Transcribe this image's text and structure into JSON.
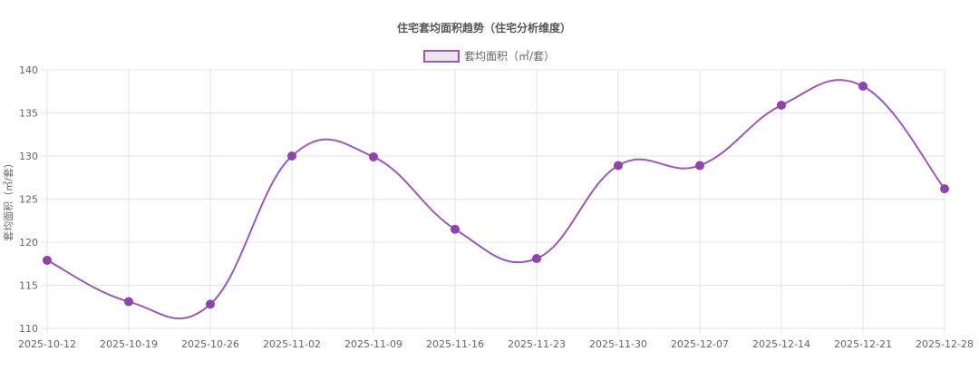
{
  "chart_data": {
    "type": "line",
    "title": "住宅套均面积趋势（住宅分析维度）",
    "xlabel": "",
    "ylabel": "套均面积（㎡/套）",
    "ylim": [
      110,
      140
    ],
    "yticks": [
      110,
      115,
      120,
      125,
      130,
      135,
      140
    ],
    "grid": true,
    "legend": "top",
    "x": [
      "2025-10-12",
      "2025-10-19",
      "2025-10-26",
      "2025-11-02",
      "2025-11-09",
      "2025-11-16",
      "2025-11-23",
      "2025-11-30",
      "2025-12-07",
      "2025-12-14",
      "2025-12-21",
      "2025-12-28"
    ],
    "series": [
      {
        "name": "套均面积（㎡/套）",
        "color": "#9b59b6",
        "fill": "#ede4f2",
        "values": [
          117.9,
          113.1,
          112.8,
          130.0,
          129.9,
          121.5,
          118.1,
          128.9,
          128.9,
          135.9,
          138.1,
          126.2
        ]
      }
    ]
  }
}
